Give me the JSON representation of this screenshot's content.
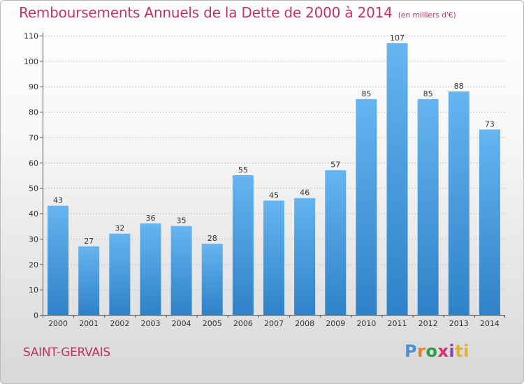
{
  "title": "Remboursements Annuels de la Dette de 2000 à 2014",
  "unit_note": "(en milliers d'€)",
  "commune": "SAINT-GERVAIS",
  "logo": {
    "text": "Proxiti",
    "letters": [
      "P",
      "r",
      "o",
      "x",
      "i",
      "ti"
    ]
  },
  "colors": {
    "bar": "#3b8fd6",
    "bar_light": "#62b0ef",
    "accent": "#c4325f",
    "grid": "#c8c8c8",
    "axis": "#555555"
  },
  "chart_data": {
    "type": "bar",
    "title": "Remboursements Annuels de la Dette de 2000 à 2014",
    "xlabel": "",
    "ylabel": "",
    "categories": [
      "2000",
      "2001",
      "2002",
      "2003",
      "2004",
      "2005",
      "2006",
      "2007",
      "2008",
      "2009",
      "2010",
      "2011",
      "2012",
      "2013",
      "2014"
    ],
    "values": [
      43,
      27,
      32,
      36,
      35,
      28,
      55,
      45,
      46,
      57,
      85,
      107,
      85,
      88,
      73
    ],
    "ylim": [
      0,
      110
    ],
    "yticks": [
      0,
      10,
      20,
      30,
      40,
      50,
      60,
      70,
      80,
      90,
      100,
      110
    ],
    "grid": true,
    "data_labels": true
  }
}
